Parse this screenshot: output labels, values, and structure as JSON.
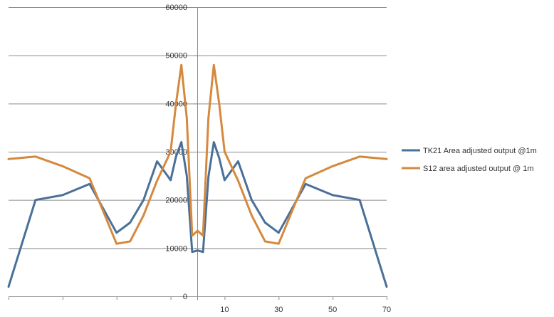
{
  "chart_data": {
    "type": "line",
    "title": "",
    "xlabel": "",
    "ylabel": "",
    "xlim": [
      -70,
      70
    ],
    "ylim": [
      0,
      60000
    ],
    "y_ticks": [
      0,
      10000,
      20000,
      30000,
      40000,
      50000,
      60000
    ],
    "y_tick_labels": [
      "0",
      "10000",
      "20000",
      "30000",
      "40000",
      "50000",
      "60000"
    ],
    "x_tick_values": [
      10,
      30,
      50,
      70
    ],
    "x_tick_labels": [
      "10",
      "30",
      "50",
      "70"
    ],
    "grid": "horizontal",
    "legend_position": "right",
    "series": [
      {
        "name": "TK21 Area adjusted output @1m",
        "color": "#4a7098",
        "x": [
          -70,
          -60,
          -50,
          -40,
          -30,
          -25,
          -20,
          -15,
          -10,
          -8,
          -6,
          -4,
          -2,
          0,
          2,
          4,
          6,
          8,
          10,
          15,
          20,
          25,
          30,
          40,
          50,
          60,
          70
        ],
        "y": [
          2000,
          20000,
          21000,
          23300,
          13200,
          15300,
          20000,
          28000,
          24100,
          29000,
          32000,
          25000,
          9200,
          9500,
          9200,
          24800,
          32000,
          28700,
          24100,
          28000,
          20000,
          15300,
          13200,
          23300,
          21000,
          20000,
          2000
        ]
      },
      {
        "name": "S12 area adjusted output @ 1m",
        "color": "#d4893e",
        "x": [
          -70,
          -60,
          -50,
          -40,
          -30,
          -25,
          -20,
          -15,
          -10,
          -8,
          -6,
          -4,
          -2,
          0,
          2,
          4,
          6,
          8,
          10,
          15,
          20,
          25,
          30,
          40,
          50,
          60,
          70
        ],
        "y": [
          28500,
          29000,
          27000,
          24500,
          10900,
          11400,
          16800,
          24000,
          30000,
          40000,
          48000,
          37000,
          12600,
          13600,
          12600,
          37000,
          48000,
          40000,
          30000,
          24000,
          16800,
          11400,
          10900,
          24500,
          27000,
          29000,
          28500
        ]
      }
    ]
  }
}
